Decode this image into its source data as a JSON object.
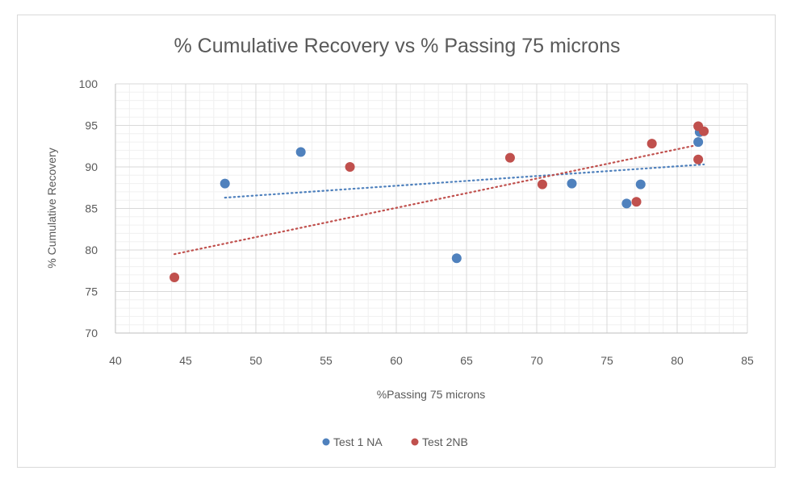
{
  "chart_data": {
    "type": "scatter",
    "title": "% Cumulative Recovery vs % Passing 75 microns",
    "xlabel": "%Passing 75 microns",
    "ylabel": "% Cumulative  Recovery",
    "xlim": [
      40,
      85
    ],
    "ylim": [
      70,
      100
    ],
    "x_ticks": [
      40,
      45,
      50,
      55,
      60,
      65,
      70,
      75,
      80,
      85
    ],
    "y_ticks": [
      70,
      75,
      80,
      85,
      90,
      95,
      100
    ],
    "x_tick_labels": [
      "40",
      "45",
      "50",
      "55",
      "60",
      "65",
      "70",
      "75",
      "80",
      "85"
    ],
    "y_tick_labels": [
      "70",
      "75",
      "80",
      "85",
      "90",
      "95",
      "100"
    ],
    "grid": {
      "major": true,
      "minor": true,
      "major_step": 5,
      "minor_step": 1
    },
    "legend_position": "bottom",
    "series": [
      {
        "name": "Test 1 NA",
        "color": "#4f81bd",
        "points": [
          [
            47.8,
            88.0
          ],
          [
            53.2,
            91.8
          ],
          [
            64.3,
            79.0
          ],
          [
            72.5,
            88.0
          ],
          [
            76.4,
            85.6
          ],
          [
            77.4,
            87.9
          ],
          [
            81.5,
            93.0
          ],
          [
            81.6,
            94.2
          ]
        ],
        "trendline": {
          "type": "linear",
          "style": "dotted",
          "from": [
            47.8,
            86.3
          ],
          "to": [
            81.9,
            90.3
          ]
        }
      },
      {
        "name": "Test 2NB",
        "color": "#c0504d",
        "points": [
          [
            44.2,
            76.7
          ],
          [
            56.7,
            90.0
          ],
          [
            68.1,
            91.1
          ],
          [
            70.4,
            87.9
          ],
          [
            77.1,
            85.8
          ],
          [
            78.2,
            92.8
          ],
          [
            81.5,
            90.9
          ],
          [
            81.5,
            94.9
          ],
          [
            81.9,
            94.3
          ]
        ],
        "trendline": {
          "type": "linear",
          "style": "dotted",
          "from": [
            44.2,
            79.5
          ],
          "to": [
            81.9,
            92.8
          ]
        }
      }
    ]
  }
}
